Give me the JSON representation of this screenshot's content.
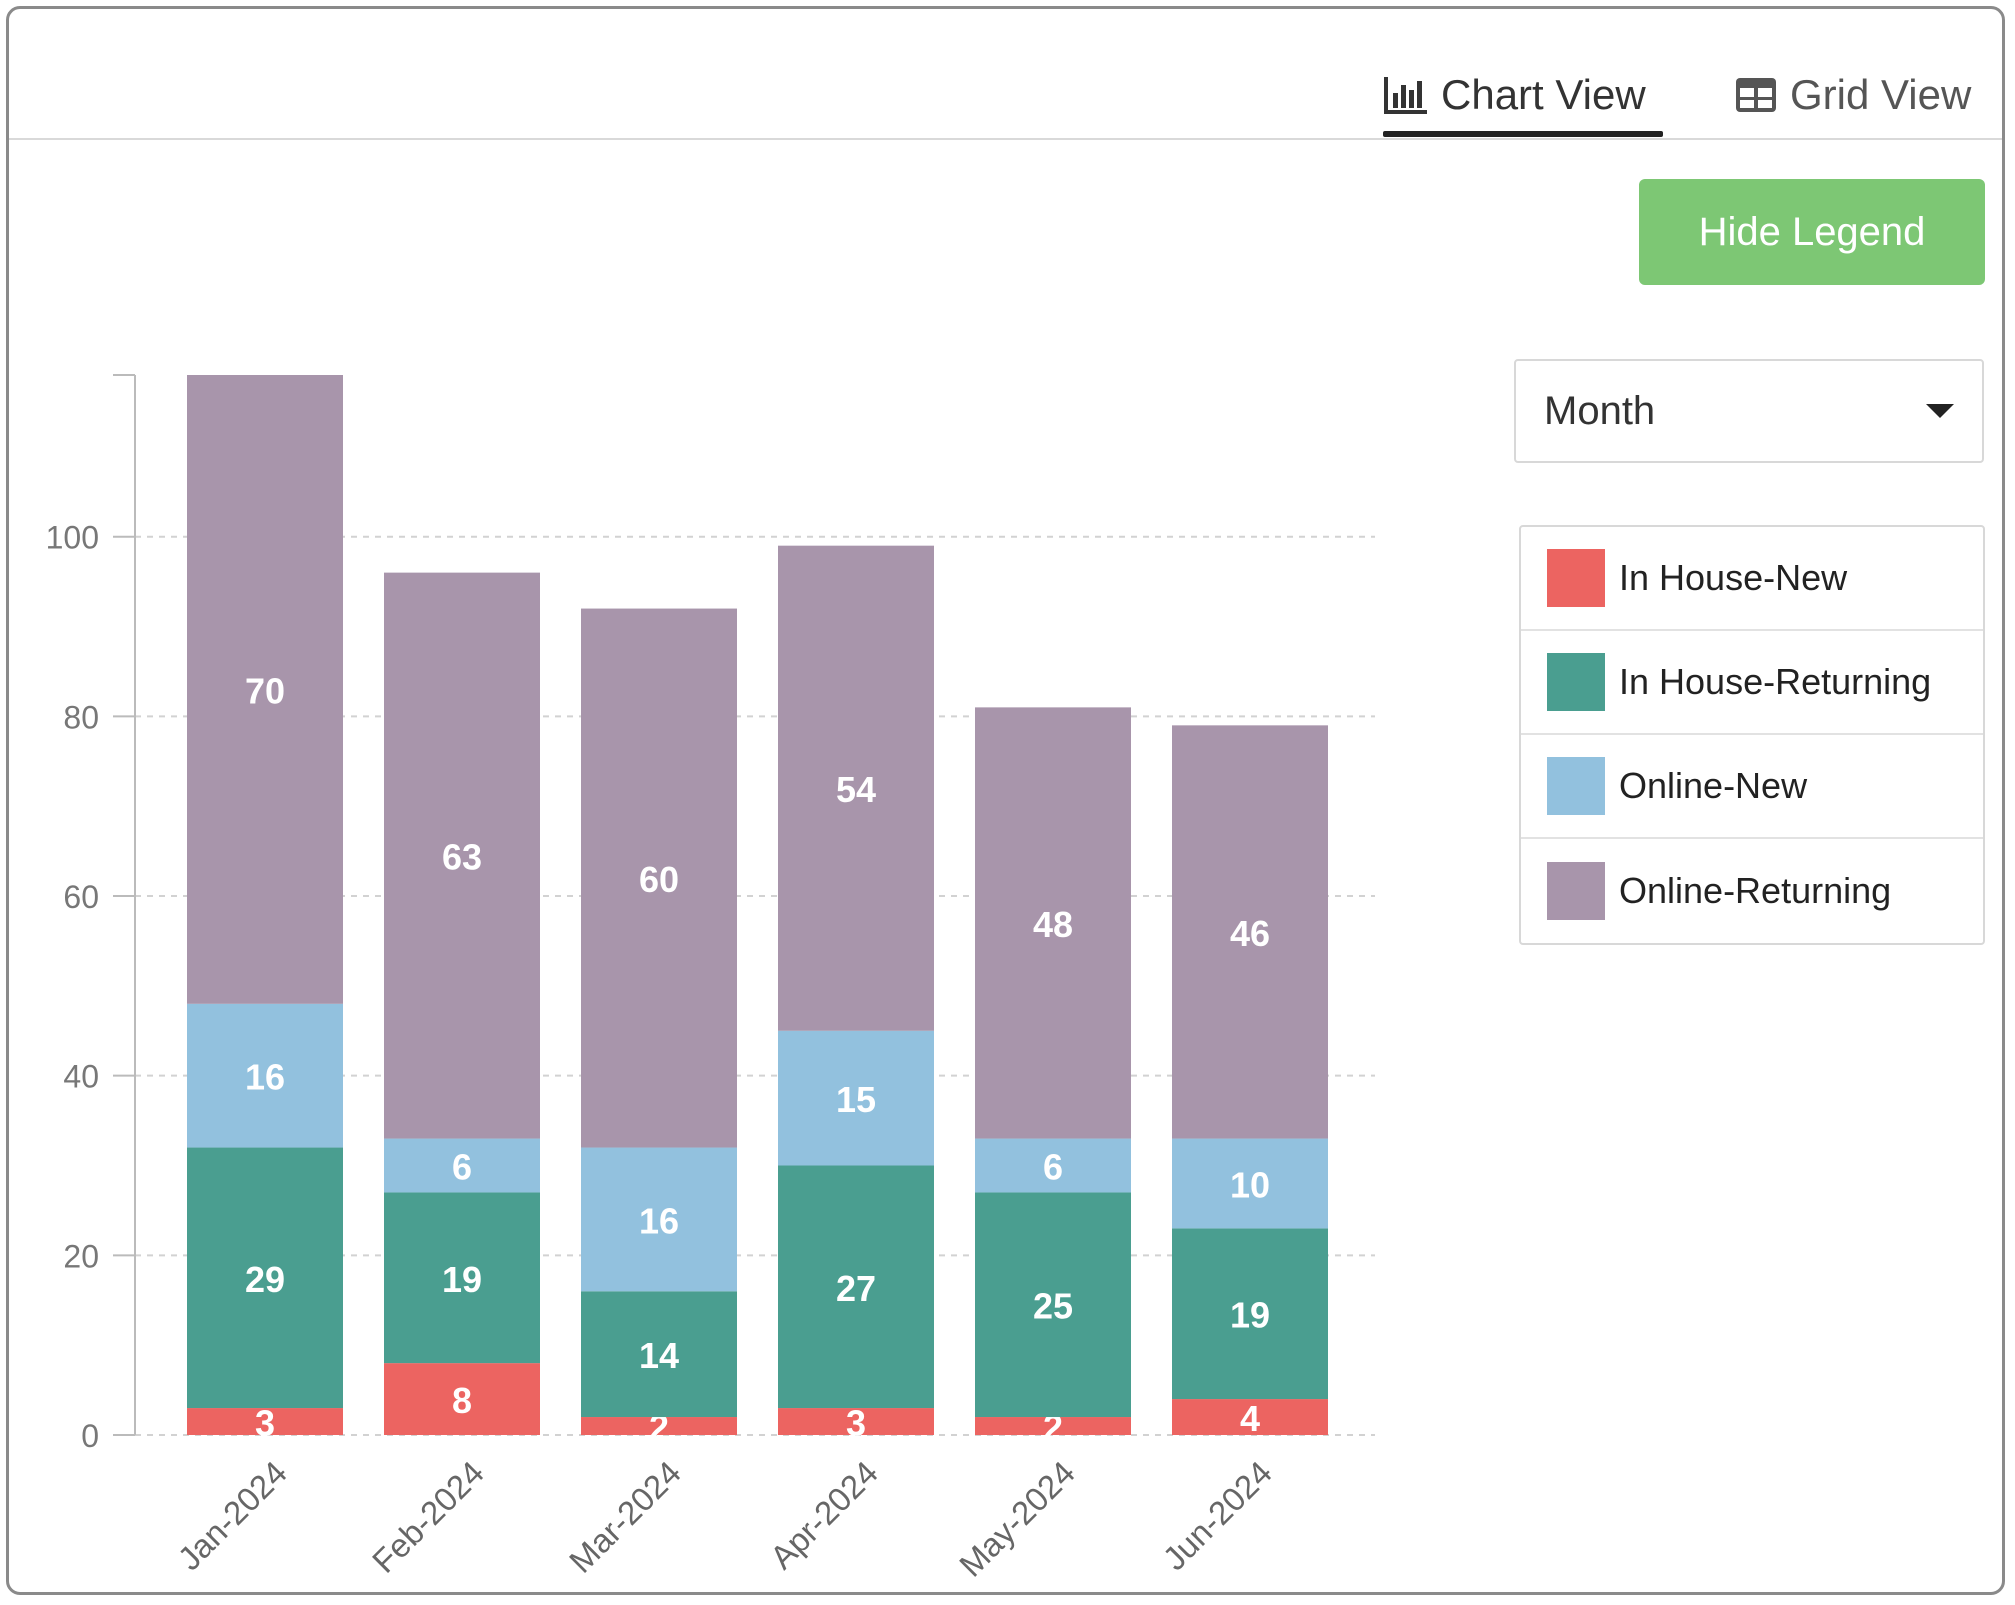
{
  "tabs": {
    "chart_view": "Chart View",
    "grid_view": "Grid View"
  },
  "buttons": {
    "hide_legend": "Hide Legend"
  },
  "period_select": {
    "value": "Month"
  },
  "legend": [
    {
      "name": "In House-New",
      "color": "#ec6461"
    },
    {
      "name": "In House-Returning",
      "color": "#4a9e90"
    },
    {
      "name": "Online-New",
      "color": "#92c1de"
    },
    {
      "name": "Online-Returning",
      "color": "#a895ab"
    }
  ],
  "chart_data": {
    "type": "bar",
    "stacked": true,
    "categories": [
      "Jan-2024",
      "Feb-2024",
      "Mar-2024",
      "Apr-2024",
      "May-2024",
      "Jun-2024"
    ],
    "series": [
      {
        "name": "In House-New",
        "color": "#ec6461",
        "values": [
          3,
          8,
          2,
          3,
          2,
          4
        ]
      },
      {
        "name": "In House-Returning",
        "color": "#4a9e90",
        "values": [
          29,
          19,
          14,
          27,
          25,
          19
        ]
      },
      {
        "name": "Online-New",
        "color": "#92c1de",
        "values": [
          16,
          6,
          16,
          15,
          6,
          10
        ]
      },
      {
        "name": "Online-Returning",
        "color": "#a895ab",
        "values": [
          70,
          63,
          60,
          54,
          48,
          46
        ]
      }
    ],
    "yticks": [
      0,
      20,
      40,
      60,
      80,
      100
    ],
    "ylim": [
      0,
      118
    ],
    "grid": true,
    "legend_position": "right"
  }
}
